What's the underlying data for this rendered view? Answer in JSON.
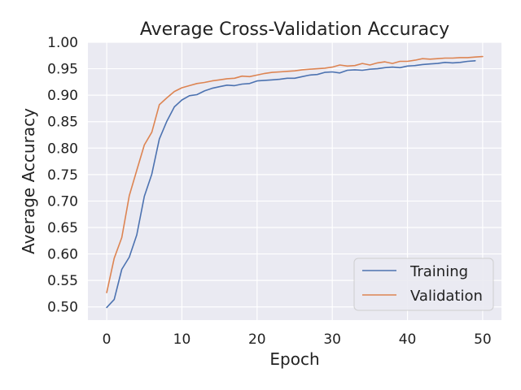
{
  "chart_data": {
    "type": "line",
    "title": "Average Cross-Validation Accuracy",
    "xlabel": "Epoch",
    "ylabel": "Average Accuracy",
    "xlim": [
      -2.5,
      52.5
    ],
    "ylim": [
      0.475,
      1.0
    ],
    "xticks": [
      0,
      10,
      20,
      30,
      40,
      50
    ],
    "yticks": [
      0.5,
      0.55,
      0.6,
      0.65,
      0.7,
      0.75,
      0.8,
      0.85,
      0.9,
      0.95,
      1.0
    ],
    "xtick_labels": [
      "0",
      "10",
      "20",
      "30",
      "40",
      "50"
    ],
    "ytick_labels": [
      "0.50",
      "0.55",
      "0.60",
      "0.65",
      "0.70",
      "0.75",
      "0.80",
      "0.85",
      "0.90",
      "0.95",
      "1.00"
    ],
    "grid": true,
    "legend_position": "lower-right",
    "background_color": "#eaeaf2",
    "series": [
      {
        "name": "Training",
        "color": "#4c72b0",
        "x": [
          0,
          1,
          2,
          3,
          4,
          5,
          6,
          7,
          8,
          9,
          10,
          11,
          12,
          13,
          14,
          15,
          16,
          17,
          18,
          19,
          20,
          21,
          22,
          23,
          24,
          25,
          26,
          27,
          28,
          29,
          30,
          31,
          32,
          33,
          34,
          35,
          36,
          37,
          38,
          39,
          40,
          41,
          42,
          43,
          44,
          45,
          46,
          47,
          48,
          49
        ],
        "values": [
          0.499,
          0.514,
          0.571,
          0.594,
          0.636,
          0.709,
          0.751,
          0.817,
          0.851,
          0.878,
          0.891,
          0.899,
          0.901,
          0.908,
          0.913,
          0.916,
          0.919,
          0.918,
          0.921,
          0.922,
          0.927,
          0.928,
          0.929,
          0.93,
          0.932,
          0.932,
          0.935,
          0.938,
          0.939,
          0.943,
          0.944,
          0.942,
          0.947,
          0.948,
          0.947,
          0.949,
          0.95,
          0.952,
          0.953,
          0.952,
          0.955,
          0.956,
          0.958,
          0.959,
          0.96,
          0.962,
          0.961,
          0.962,
          0.964,
          0.965
        ]
      },
      {
        "name": "Validation",
        "color": "#dd8452",
        "x": [
          0,
          1,
          2,
          3,
          4,
          5,
          6,
          7,
          8,
          9,
          10,
          11,
          12,
          13,
          14,
          15,
          16,
          17,
          18,
          19,
          20,
          21,
          22,
          23,
          24,
          25,
          26,
          27,
          28,
          29,
          30,
          31,
          32,
          33,
          34,
          35,
          36,
          37,
          38,
          39,
          40,
          41,
          42,
          43,
          44,
          45,
          46,
          47,
          48,
          49,
          50
        ],
        "values": [
          0.527,
          0.592,
          0.631,
          0.71,
          0.758,
          0.806,
          0.83,
          0.882,
          0.895,
          0.907,
          0.914,
          0.918,
          0.922,
          0.924,
          0.927,
          0.929,
          0.931,
          0.932,
          0.936,
          0.935,
          0.938,
          0.941,
          0.943,
          0.944,
          0.945,
          0.946,
          0.948,
          0.949,
          0.95,
          0.951,
          0.953,
          0.957,
          0.955,
          0.956,
          0.96,
          0.957,
          0.961,
          0.963,
          0.96,
          0.964,
          0.964,
          0.966,
          0.969,
          0.968,
          0.969,
          0.97,
          0.97,
          0.971,
          0.971,
          0.972,
          0.973
        ]
      }
    ]
  }
}
